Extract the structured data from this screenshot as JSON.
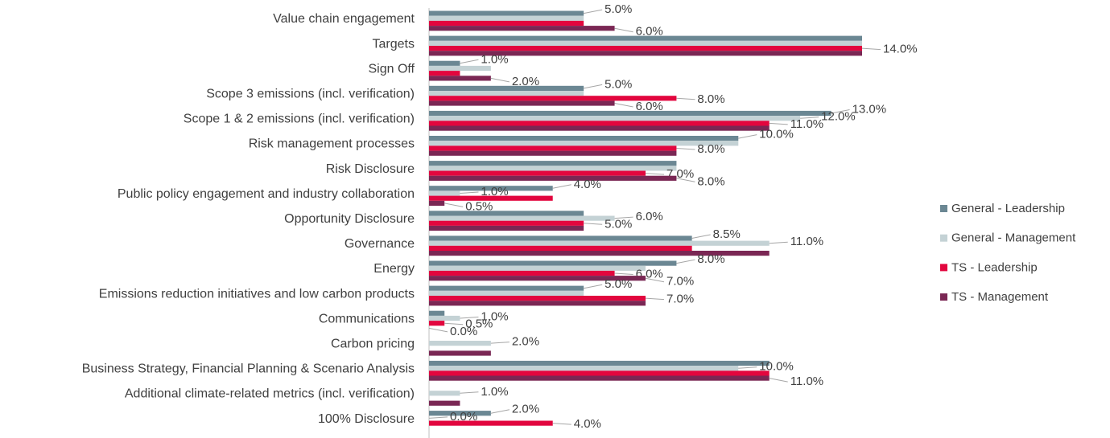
{
  "chart_data": {
    "type": "bar",
    "orientation": "horizontal",
    "categories": [
      "Value chain engagement",
      "Targets",
      "Sign Off",
      "Scope 3 emissions (incl. verification)",
      "Scope 1 & 2 emissions (incl. verification)",
      "Risk management processes",
      "Risk Disclosure",
      "Public policy engagement and industry collaboration",
      "Opportunity Disclosure",
      "Governance",
      "Energy",
      "Emissions reduction initiatives and low carbon products",
      "Communications",
      "Carbon pricing",
      "Business Strategy, Financial Planning & Scenario Analysis",
      "Additional climate-related metrics (incl. verification)",
      "100% Disclosure"
    ],
    "series": [
      {
        "name": "General - Leadership",
        "color": "#6b8793",
        "values": [
          5,
          14,
          1,
          5,
          13,
          10,
          8,
          4,
          5,
          8.5,
          8,
          5,
          0.5,
          0,
          11,
          0,
          2
        ],
        "value_labels": [
          "5.0%",
          null,
          "1.0%",
          "5.0%",
          "13.0%",
          "10.0%",
          null,
          "4.0%",
          null,
          "8.5%",
          "8.0%",
          "5.0%",
          null,
          null,
          null,
          null,
          "2.0%"
        ]
      },
      {
        "name": "General - Management",
        "color": "#c4d2d5",
        "values": [
          5,
          14,
          2,
          5,
          12,
          10,
          8,
          1,
          6,
          11,
          7,
          5,
          1,
          2,
          10,
          1,
          0
        ],
        "value_labels": [
          null,
          null,
          null,
          null,
          "12.0%",
          null,
          null,
          "1.0%",
          "6.0%",
          "11.0%",
          null,
          null,
          "1.0%",
          "2.0%",
          "10.0%",
          "1.0%",
          "0.0%"
        ]
      },
      {
        "name": "TS - Leadership",
        "color": "#e2063e",
        "values": [
          5,
          14,
          1,
          8,
          11,
          8,
          7,
          4,
          5,
          8.5,
          6,
          7,
          0.5,
          0,
          11,
          0,
          4
        ],
        "value_labels": [
          null,
          "14.0%",
          null,
          "8.0%",
          "11.0%",
          "8.0%",
          "7.0%",
          null,
          "5.0%",
          null,
          "6.0%",
          "7.0%",
          "0.5%",
          null,
          null,
          null,
          "4.0%"
        ]
      },
      {
        "name": "TS - Management",
        "color": "#7a2754",
        "values": [
          6,
          14,
          2,
          6,
          11,
          8,
          8,
          0.5,
          5,
          11,
          7,
          7,
          0,
          2,
          11,
          1,
          0
        ],
        "value_labels": [
          "6.0%",
          null,
          "2.0%",
          "6.0%",
          null,
          null,
          "8.0%",
          "0.5%",
          null,
          null,
          "7.0%",
          null,
          "0.0%",
          null,
          "11.0%",
          null,
          null
        ]
      }
    ],
    "legend": "right"
  }
}
